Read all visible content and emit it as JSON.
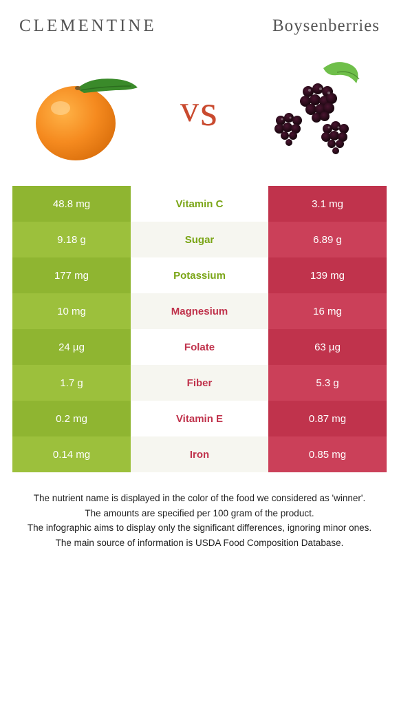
{
  "header": {
    "left": "CLEMENTINE",
    "right": "Boysenberries"
  },
  "vs": "vs",
  "colors": {
    "left_cell": "#8fb531",
    "left_cell_alt": "#9cc03c",
    "right_cell": "#c0334c",
    "right_cell_alt": "#cb4059",
    "mid_bg": "#ffffff",
    "mid_bg_alt": "#f6f6f0",
    "nutrient_left": "#7aa516",
    "nutrient_right": "#c0334c"
  },
  "rows": [
    {
      "left": "48.8 mg",
      "label": "Vitamin C",
      "right": "3.1 mg",
      "winner": "left"
    },
    {
      "left": "9.18 g",
      "label": "Sugar",
      "right": "6.89 g",
      "winner": "left"
    },
    {
      "left": "177 mg",
      "label": "Potassium",
      "right": "139 mg",
      "winner": "left"
    },
    {
      "left": "10 mg",
      "label": "Magnesium",
      "right": "16 mg",
      "winner": "right"
    },
    {
      "left": "24 µg",
      "label": "Folate",
      "right": "63 µg",
      "winner": "right"
    },
    {
      "left": "1.7 g",
      "label": "Fiber",
      "right": "5.3 g",
      "winner": "right"
    },
    {
      "left": "0.2 mg",
      "label": "Vitamin E",
      "right": "0.87 mg",
      "winner": "right"
    },
    {
      "left": "0.14 mg",
      "label": "Iron",
      "right": "0.85 mg",
      "winner": "right"
    }
  ],
  "footer": {
    "line1": "The nutrient name is displayed in the color of the food we considered as 'winner'.",
    "line2": "The amounts are specified per 100 gram of the product.",
    "line3": "The infographic aims to display only the significant differences, ignoring minor ones.",
    "line4": "The main source of information is USDA Food Composition Database."
  }
}
